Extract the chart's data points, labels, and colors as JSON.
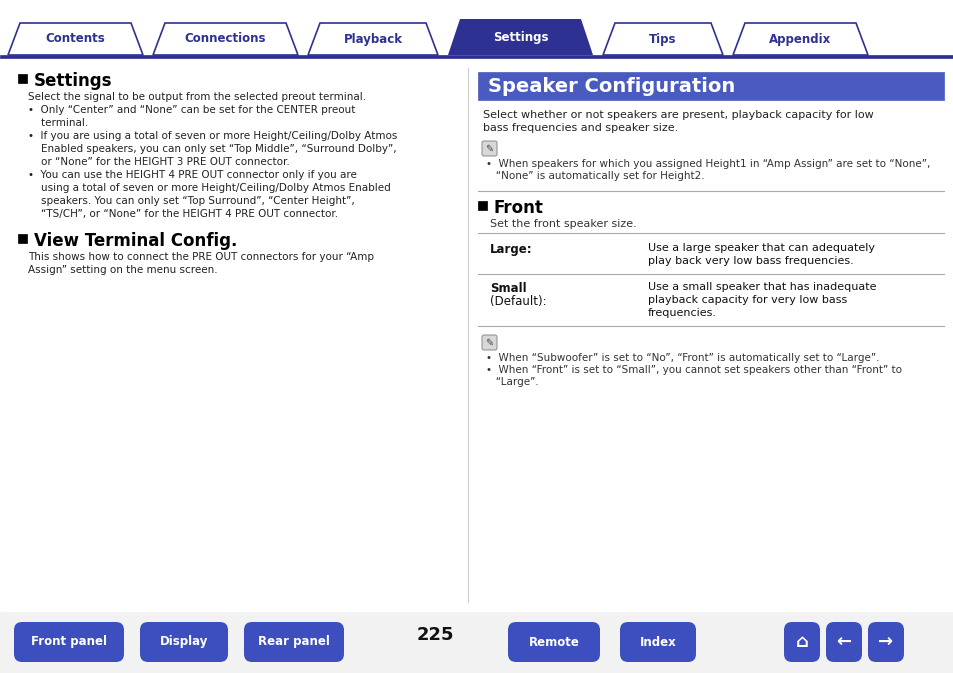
{
  "bg_color": "#ffffff",
  "nav_bar_color": "#2e3192",
  "nav_active_color": "#2e3192",
  "nav_inactive_color": "#ffffff",
  "nav_tabs": [
    "Contents",
    "Connections",
    "Playback",
    "Settings",
    "Tips",
    "Appendix"
  ],
  "nav_active_index": 3,
  "header_bg": "#4a5bbf",
  "header_text": "Speaker Configuration",
  "header_text_color": "#ffffff",
  "left_section1_title": "Settings",
  "left_section1_body_lines": [
    "Select the signal to be output from the selected preout terminal.",
    "•  Only “Center” and “None” can be set for the CENTER preout",
    "    terminal.",
    "•  If you are using a total of seven or more Height/Ceiling/Dolby Atmos",
    "    Enabled speakers, you can only set “Top Middle”, “Surround Dolby”,",
    "    or “None” for the HEIGHT 3 PRE OUT connector.",
    "•  You can use the HEIGHT 4 PRE OUT connector only if you are",
    "    using a total of seven or more Height/Ceiling/Dolby Atmos Enabled",
    "    speakers. You can only set “Top Surround”, “Center Height”,",
    "    “TS/CH”, or “None” for the HEIGHT 4 PRE OUT connector."
  ],
  "left_section2_title": "View Terminal Config.",
  "left_section2_body_lines": [
    "This shows how to connect the PRE OUT connectors for your “Amp",
    "Assign” setting on the menu screen."
  ],
  "right_intro_lines": [
    "Select whether or not speakers are present, playback capacity for low",
    "bass frequencies and speaker size."
  ],
  "right_note1_lines": [
    "•  When speakers for which you assigned Height1 in “Amp Assign” are set to “None”,",
    "   “None” is automatically set for Height2."
  ],
  "right_section_title": "Front",
  "right_section_subtitle": "Set the front speaker size.",
  "right_table_row1_label": "Large:",
  "right_table_row1_desc": [
    "Use a large speaker that can adequately",
    "play back very low bass frequencies."
  ],
  "right_table_row2_label1": "Small",
  "right_table_row2_label2": "(Default):",
  "right_table_row2_desc": [
    "Use a small speaker that has inadequate",
    "playback capacity for very low bass",
    "frequencies."
  ],
  "right_note2_lines": [
    "•  When “Subwoofer” is set to “No”, “Front” is automatically set to “Large”.",
    "•  When “Front” is set to “Small”, you cannot set speakers other than “Front” to",
    "   “Large”."
  ],
  "bottom_page": "225",
  "bottom_buttons": [
    "Front panel",
    "Display",
    "Rear panel",
    "Remote",
    "Index"
  ],
  "bottom_btn_color": "#3d4fbe",
  "bottom_btn_text_color": "#ffffff",
  "text_color": "#1a1a1a",
  "light_gray": "#f2f2f2",
  "mid_gray": "#999999",
  "line_color": "#bbbbbb"
}
